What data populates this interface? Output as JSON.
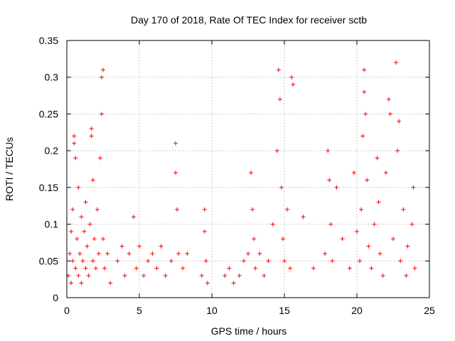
{
  "chart_data": {
    "type": "scatter",
    "title": "Day 170 of 2018, Rate Of TEC Index for receiver sctb",
    "xlabel": "GPS time / hours",
    "ylabel": "ROTI / TECUs",
    "xlim": [
      0,
      25
    ],
    "ylim": [
      0,
      0.35
    ],
    "xticks": [
      0,
      5,
      10,
      15,
      20,
      25
    ],
    "yticks": [
      0,
      0.05,
      0.1,
      0.15,
      0.2,
      0.25,
      0.3,
      0.35
    ],
    "xtick_labels": [
      "0",
      "5",
      "10",
      "15",
      "20",
      "25"
    ],
    "ytick_labels": [
      "0",
      "0.05",
      "0.1",
      "0.15",
      "0.2",
      "0.25",
      "0.3",
      "0.35"
    ],
    "grid": true,
    "marker": "+",
    "color": "#ff0000",
    "series": [
      {
        "name": "ROTI",
        "points": [
          [
            0.1,
            0.03
          ],
          [
            0.2,
            0.06
          ],
          [
            0.3,
            0.02
          ],
          [
            0.3,
            0.09
          ],
          [
            0.4,
            0.05
          ],
          [
            0.4,
            0.12
          ],
          [
            0.5,
            0.22
          ],
          [
            0.5,
            0.21
          ],
          [
            0.6,
            0.04
          ],
          [
            0.6,
            0.19
          ],
          [
            0.7,
            0.08
          ],
          [
            0.8,
            0.03
          ],
          [
            0.8,
            0.15
          ],
          [
            0.9,
            0.06
          ],
          [
            1.0,
            0.02
          ],
          [
            1.0,
            0.11
          ],
          [
            1.1,
            0.05
          ],
          [
            1.2,
            0.09
          ],
          [
            1.3,
            0.04
          ],
          [
            1.3,
            0.13
          ],
          [
            1.4,
            0.07
          ],
          [
            1.5,
            0.03
          ],
          [
            1.6,
            0.1
          ],
          [
            1.7,
            0.23
          ],
          [
            1.7,
            0.22
          ],
          [
            1.8,
            0.05
          ],
          [
            1.8,
            0.16
          ],
          [
            1.9,
            0.08
          ],
          [
            2.0,
            0.04
          ],
          [
            2.1,
            0.12
          ],
          [
            2.2,
            0.06
          ],
          [
            2.3,
            0.19
          ],
          [
            2.4,
            0.3
          ],
          [
            2.4,
            0.25
          ],
          [
            2.5,
            0.31
          ],
          [
            2.5,
            0.08
          ],
          [
            2.6,
            0.04
          ],
          [
            2.8,
            0.06
          ],
          [
            3.0,
            0.02
          ],
          [
            3.5,
            0.05
          ],
          [
            3.8,
            0.07
          ],
          [
            4.0,
            0.03
          ],
          [
            4.3,
            0.06
          ],
          [
            4.6,
            0.11
          ],
          [
            4.8,
            0.04
          ],
          [
            5.0,
            0.07
          ],
          [
            5.3,
            0.03
          ],
          [
            5.6,
            0.05
          ],
          [
            5.9,
            0.06
          ],
          [
            6.2,
            0.04
          ],
          [
            6.5,
            0.07
          ],
          [
            6.8,
            0.03
          ],
          [
            7.2,
            0.05
          ],
          [
            7.5,
            0.21
          ],
          [
            7.5,
            0.17
          ],
          [
            7.6,
            0.12
          ],
          [
            7.7,
            0.06
          ],
          [
            8.0,
            0.04
          ],
          [
            8.3,
            0.06
          ],
          [
            9.3,
            0.03
          ],
          [
            9.5,
            0.12
          ],
          [
            9.5,
            0.09
          ],
          [
            9.6,
            0.05
          ],
          [
            9.7,
            0.02
          ],
          [
            10.9,
            0.03
          ],
          [
            11.2,
            0.04
          ],
          [
            11.5,
            0.02
          ],
          [
            11.9,
            0.03
          ],
          [
            12.2,
            0.05
          ],
          [
            12.5,
            0.06
          ],
          [
            12.7,
            0.17
          ],
          [
            12.8,
            0.12
          ],
          [
            12.9,
            0.08
          ],
          [
            13.0,
            0.04
          ],
          [
            13.3,
            0.06
          ],
          [
            13.6,
            0.03
          ],
          [
            13.9,
            0.05
          ],
          [
            14.2,
            0.1
          ],
          [
            14.5,
            0.2
          ],
          [
            14.6,
            0.31
          ],
          [
            14.7,
            0.27
          ],
          [
            14.8,
            0.15
          ],
          [
            14.9,
            0.08
          ],
          [
            15.0,
            0.05
          ],
          [
            15.2,
            0.12
          ],
          [
            15.4,
            0.04
          ],
          [
            15.5,
            0.3
          ],
          [
            15.6,
            0.29
          ],
          [
            16.3,
            0.11
          ],
          [
            17.0,
            0.04
          ],
          [
            17.8,
            0.06
          ],
          [
            18.0,
            0.2
          ],
          [
            18.1,
            0.16
          ],
          [
            18.2,
            0.1
          ],
          [
            18.3,
            0.05
          ],
          [
            18.6,
            0.15
          ],
          [
            19.0,
            0.08
          ],
          [
            19.5,
            0.04
          ],
          [
            19.8,
            0.17
          ],
          [
            20.0,
            0.09
          ],
          [
            20.2,
            0.05
          ],
          [
            20.3,
            0.12
          ],
          [
            20.4,
            0.22
          ],
          [
            20.5,
            0.31
          ],
          [
            20.5,
            0.28
          ],
          [
            20.6,
            0.25
          ],
          [
            20.7,
            0.16
          ],
          [
            20.8,
            0.07
          ],
          [
            21.0,
            0.04
          ],
          [
            21.2,
            0.1
          ],
          [
            21.4,
            0.19
          ],
          [
            21.5,
            0.13
          ],
          [
            21.6,
            0.06
          ],
          [
            21.8,
            0.03
          ],
          [
            22.0,
            0.17
          ],
          [
            22.2,
            0.27
          ],
          [
            22.3,
            0.25
          ],
          [
            22.5,
            0.08
          ],
          [
            22.7,
            0.32
          ],
          [
            22.8,
            0.2
          ],
          [
            22.9,
            0.24
          ],
          [
            23.0,
            0.05
          ],
          [
            23.2,
            0.12
          ],
          [
            23.4,
            0.03
          ],
          [
            23.5,
            0.07
          ],
          [
            23.8,
            0.1
          ],
          [
            23.9,
            0.15
          ],
          [
            24.0,
            0.04
          ]
        ]
      }
    ]
  }
}
